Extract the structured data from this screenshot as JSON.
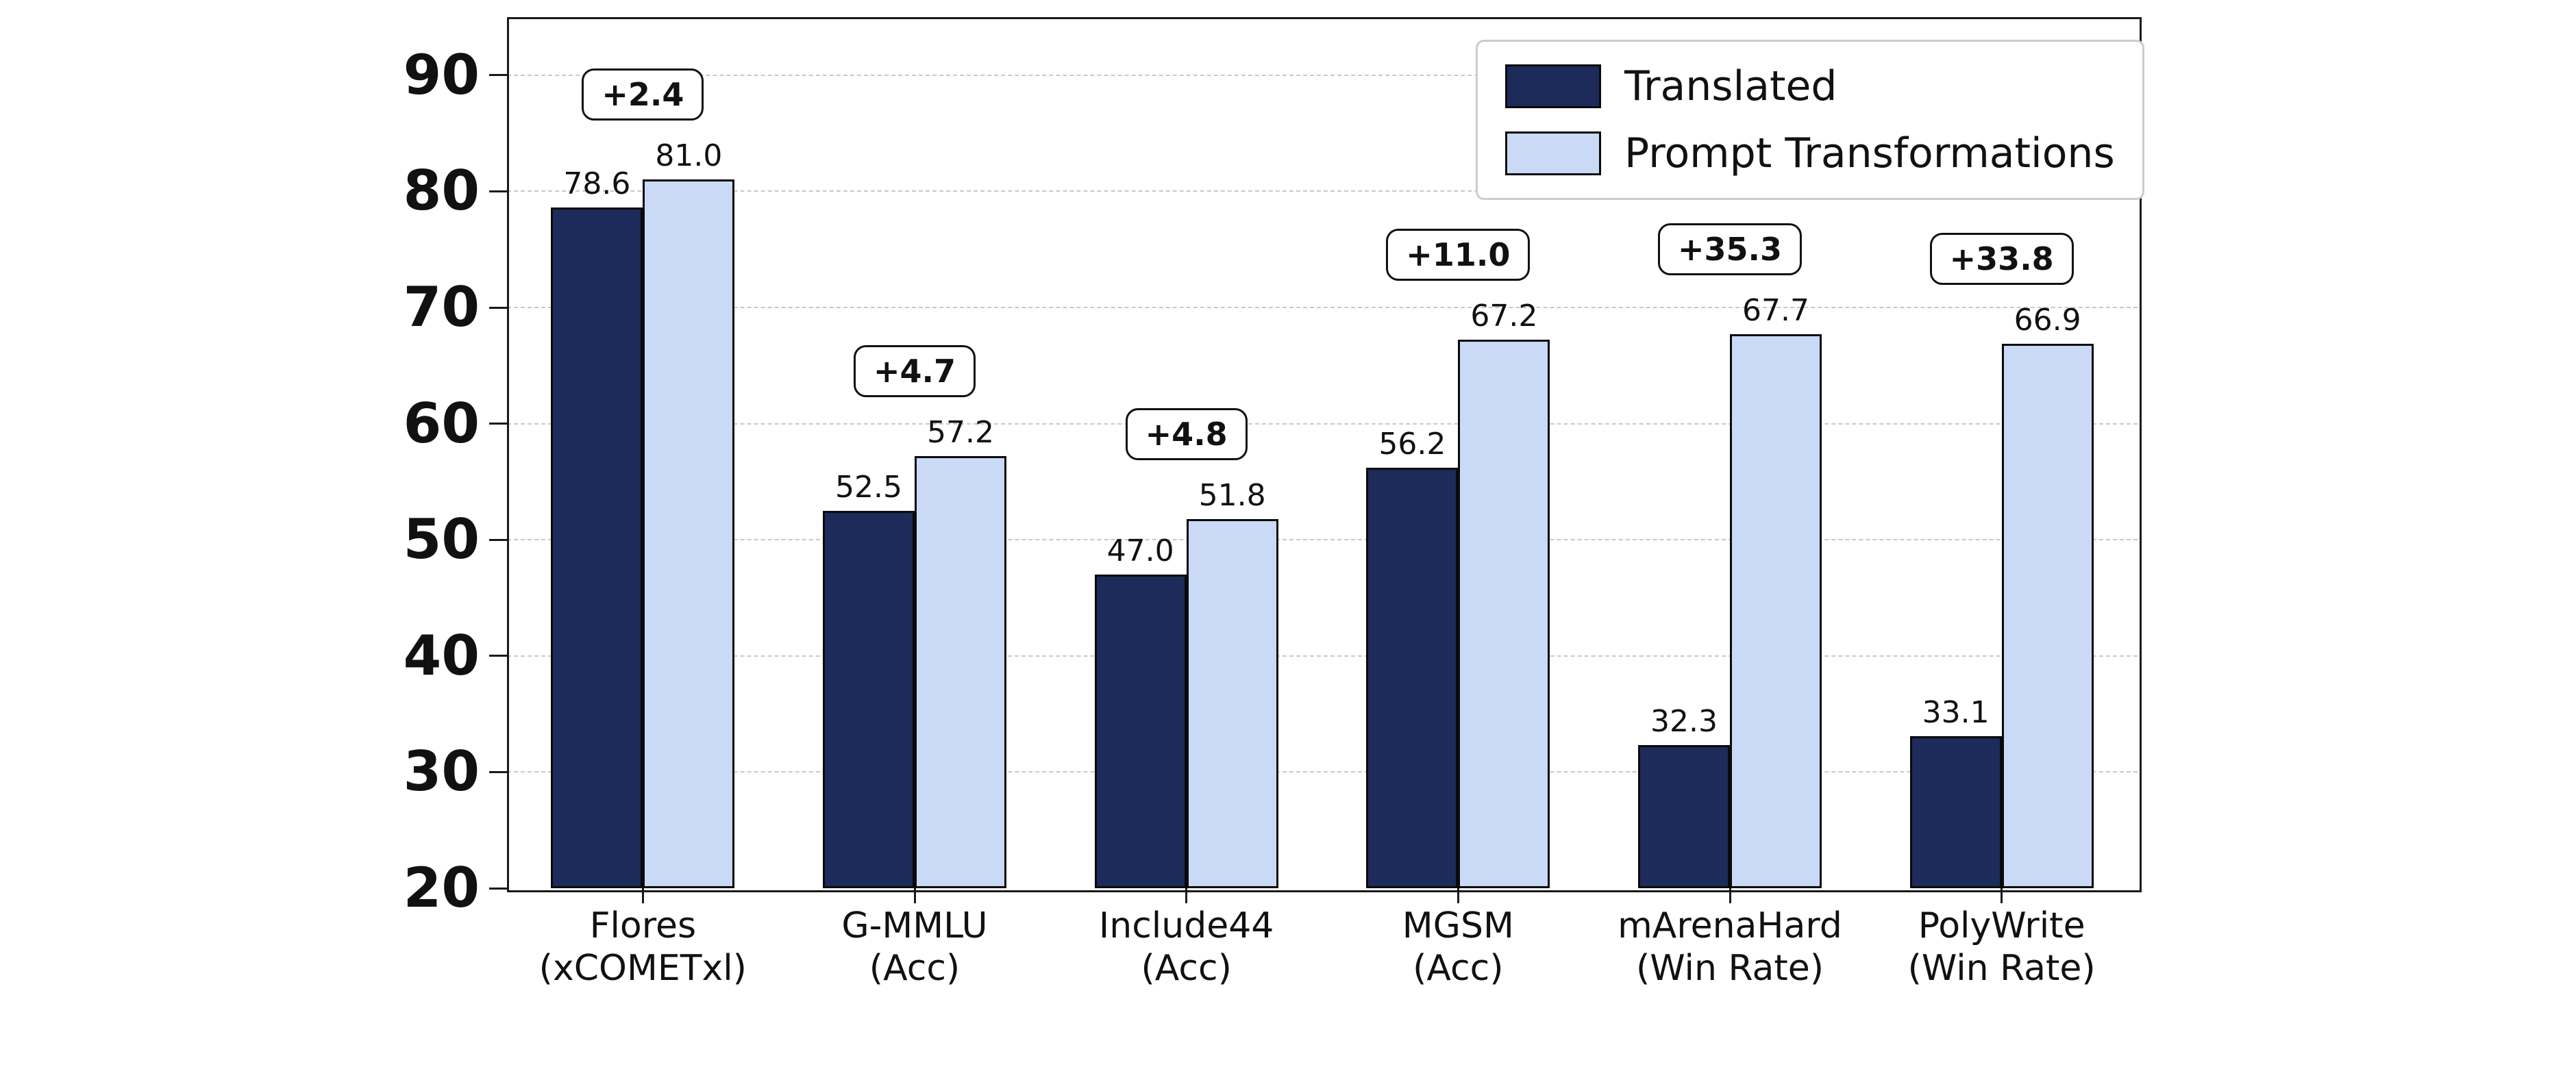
{
  "chart_data": {
    "type": "bar",
    "title": "",
    "xlabel": "",
    "ylabel": "",
    "ylim": [
      20,
      95
    ],
    "yticks": [
      20,
      30,
      40,
      50,
      60,
      70,
      80,
      90
    ],
    "grid": "horizontal-dashed",
    "legend_position": "top-right",
    "bar_edge_color": "#0a0a0a",
    "categories": [
      {
        "line1": "Flores",
        "line2": "(xCOMETxl)"
      },
      {
        "line1": "G-MMLU",
        "line2": "(Acc)"
      },
      {
        "line1": "Include44",
        "line2": "(Acc)"
      },
      {
        "line1": "MGSM",
        "line2": "(Acc)"
      },
      {
        "line1": "mArenaHard",
        "line2": "(Win Rate)"
      },
      {
        "line1": "PolyWrite",
        "line2": "(Win Rate)"
      }
    ],
    "series": [
      {
        "name": "Translated",
        "color": "#1c2b5a",
        "values": [
          78.6,
          52.5,
          47.0,
          56.2,
          32.3,
          33.1
        ]
      },
      {
        "name": "Prompt Transformations",
        "color": "#c9d9f6",
        "values": [
          81.0,
          57.2,
          51.8,
          67.2,
          67.7,
          66.9
        ]
      }
    ],
    "delta_labels": [
      "+2.4",
      "+4.7",
      "+4.8",
      "+11.0",
      "+35.3",
      "+33.8"
    ]
  }
}
